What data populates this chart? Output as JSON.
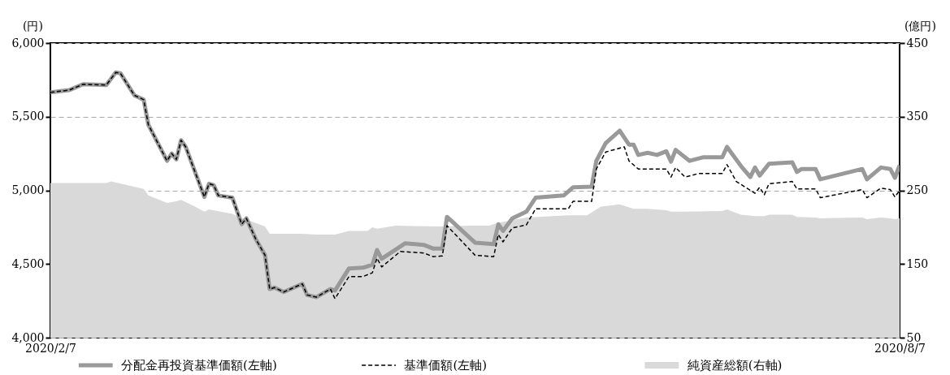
{
  "chart_data": {
    "type": "line",
    "ylabel": "(円)",
    "y2label": "(億円)",
    "grid": "y",
    "legend": "bottom",
    "xlim": [
      "2020-02-07",
      "2020-08-07"
    ],
    "xticks": [
      {
        "value": "2020-02-07",
        "label": "2020/2/7"
      },
      {
        "value": "2020-08-07",
        "label": "2020/8/7"
      }
    ],
    "ylim": [
      4000,
      6000
    ],
    "yticks": [
      {
        "value": 4000,
        "label": "4,000"
      },
      {
        "value": 4500,
        "label": "4,500"
      },
      {
        "value": 5000,
        "label": "5,000"
      },
      {
        "value": 5500,
        "label": "5,500"
      },
      {
        "value": 6000,
        "label": "6,000"
      }
    ],
    "y2lim": [
      50,
      450
    ],
    "y2ticks": [
      50,
      150,
      250,
      350,
      450
    ],
    "series": [
      {
        "name": "分配金再投資基準価額(左軸)",
        "type": "line",
        "line_style": "solid",
        "color": "#999999",
        "x": [
          "2020-02-07",
          "2020-02-11",
          "2020-02-14",
          "2020-02-19",
          "2020-02-21",
          "2020-02-22",
          "2020-02-25",
          "2020-02-27",
          "2020-02-28",
          "2020-03-03",
          "2020-03-04",
          "2020-03-05",
          "2020-03-06",
          "2020-03-07",
          "2020-03-11",
          "2020-03-12",
          "2020-03-13",
          "2020-03-14",
          "2020-03-17",
          "2020-03-19",
          "2020-03-20",
          "2020-03-22",
          "2020-03-24",
          "2020-03-25",
          "2020-03-26",
          "2020-03-28",
          "2020-04-01",
          "2020-04-02",
          "2020-04-04",
          "2020-04-07",
          "2020-04-08",
          "2020-04-11",
          "2020-04-14",
          "2020-04-16",
          "2020-04-17",
          "2020-04-18",
          "2020-04-23",
          "2020-04-27",
          "2020-04-29",
          "2020-05-01",
          "2020-05-02",
          "2020-05-08",
          "2020-05-12",
          "2020-05-13",
          "2020-05-14",
          "2020-05-16",
          "2020-05-19",
          "2020-05-21",
          "2020-05-27",
          "2020-05-29",
          "2020-06-02",
          "2020-06-03",
          "2020-06-05",
          "2020-06-08",
          "2020-06-10",
          "2020-06-11",
          "2020-06-12",
          "2020-06-14",
          "2020-06-16",
          "2020-06-18",
          "2020-06-19",
          "2020-06-20",
          "2020-06-23",
          "2020-06-26",
          "2020-06-30",
          "2020-07-01",
          "2020-07-04",
          "2020-07-06",
          "2020-07-07",
          "2020-07-08",
          "2020-07-10",
          "2020-07-15",
          "2020-07-16",
          "2020-07-17",
          "2020-07-20",
          "2020-07-21",
          "2020-07-30",
          "2020-07-31",
          "2020-08-03",
          "2020-08-05",
          "2020-08-06",
          "2020-08-07"
        ],
        "values": [
          5665,
          5680,
          5720,
          5715,
          5800,
          5795,
          5645,
          5615,
          5445,
          5200,
          5250,
          5210,
          5340,
          5295,
          4955,
          5045,
          5035,
          4965,
          4950,
          4770,
          4810,
          4670,
          4560,
          4330,
          4340,
          4310,
          4365,
          4290,
          4275,
          4330,
          4320,
          4470,
          4475,
          4495,
          4595,
          4535,
          4640,
          4630,
          4605,
          4605,
          4820,
          4645,
          4635,
          4770,
          4725,
          4810,
          4855,
          4950,
          4965,
          5020,
          5025,
          5200,
          5320,
          5405,
          5310,
          5310,
          5240,
          5255,
          5240,
          5265,
          5195,
          5275,
          5200,
          5225,
          5225,
          5295,
          5165,
          5090,
          5155,
          5100,
          5180,
          5190,
          5125,
          5145,
          5145,
          5075,
          5145,
          5075,
          5155,
          5145,
          5085,
          5170
        ]
      },
      {
        "name": "基準価額(左軸)",
        "type": "line",
        "line_style": "dashed",
        "color": "#000000",
        "x": [
          "2020-02-07",
          "2020-02-11",
          "2020-02-14",
          "2020-02-19",
          "2020-02-21",
          "2020-02-22",
          "2020-02-25",
          "2020-02-27",
          "2020-02-28",
          "2020-03-03",
          "2020-03-04",
          "2020-03-05",
          "2020-03-06",
          "2020-03-07",
          "2020-03-11",
          "2020-03-12",
          "2020-03-13",
          "2020-03-14",
          "2020-03-17",
          "2020-03-19",
          "2020-03-20",
          "2020-03-22",
          "2020-03-24",
          "2020-03-25",
          "2020-03-26",
          "2020-03-28",
          "2020-04-01",
          "2020-04-02",
          "2020-04-04",
          "2020-04-07",
          "2020-04-08",
          "2020-04-11",
          "2020-04-14",
          "2020-04-16",
          "2020-04-17",
          "2020-04-18",
          "2020-04-22",
          "2020-04-27",
          "2020-04-29",
          "2020-05-01",
          "2020-05-02",
          "2020-05-08",
          "2020-05-12",
          "2020-05-13",
          "2020-05-14",
          "2020-05-16",
          "2020-05-19",
          "2020-05-21",
          "2020-05-28",
          "2020-05-29",
          "2020-06-02",
          "2020-06-03",
          "2020-06-05",
          "2020-06-09",
          "2020-06-10",
          "2020-06-12",
          "2020-06-14",
          "2020-06-18",
          "2020-06-19",
          "2020-06-20",
          "2020-06-22",
          "2020-06-25",
          "2020-06-30",
          "2020-07-01",
          "2020-07-03",
          "2020-07-07",
          "2020-07-08",
          "2020-07-09",
          "2020-07-10",
          "2020-07-15",
          "2020-07-16",
          "2020-07-20",
          "2020-07-21",
          "2020-07-30",
          "2020-07-31",
          "2020-08-03",
          "2020-08-05",
          "2020-08-06",
          "2020-08-07"
        ],
        "values": [
          5665,
          5680,
          5720,
          5715,
          5800,
          5795,
          5645,
          5615,
          5445,
          5200,
          5250,
          5210,
          5340,
          5295,
          4955,
          5045,
          5035,
          4965,
          4950,
          4770,
          4810,
          4670,
          4560,
          4330,
          4340,
          4310,
          4365,
          4290,
          4275,
          4330,
          4265,
          4415,
          4415,
          4440,
          4540,
          4480,
          4585,
          4575,
          4550,
          4555,
          4760,
          4560,
          4550,
          4700,
          4650,
          4745,
          4765,
          4875,
          4875,
          4925,
          4925,
          5145,
          5260,
          5295,
          5200,
          5145,
          5145,
          5145,
          5090,
          5155,
          5090,
          5115,
          5115,
          5175,
          5060,
          4980,
          5020,
          4970,
          5045,
          5060,
          5010,
          5010,
          4950,
          5005,
          4950,
          5015,
          5005,
          4955,
          5000
        ]
      },
      {
        "name": "純資産総額(右軸)",
        "type": "area",
        "axis": "y2",
        "color": "#d9d9d9",
        "x": [
          "2020-02-07",
          "2020-02-19",
          "2020-02-20",
          "2020-02-27",
          "2020-02-28",
          "2020-03-03",
          "2020-03-05",
          "2020-03-06",
          "2020-03-09",
          "2020-03-11",
          "2020-03-12",
          "2020-03-17",
          "2020-03-18",
          "2020-03-24",
          "2020-03-25",
          "2020-04-01",
          "2020-04-04",
          "2020-04-08",
          "2020-04-11",
          "2020-04-15",
          "2020-04-16",
          "2020-04-17",
          "2020-04-21",
          "2020-05-01",
          "2020-05-07",
          "2020-05-11",
          "2020-05-13",
          "2020-05-19",
          "2020-05-28",
          "2020-06-01",
          "2020-06-04",
          "2020-06-08",
          "2020-06-11",
          "2020-06-14",
          "2020-06-18",
          "2020-06-19",
          "2020-06-22",
          "2020-06-30",
          "2020-07-01",
          "2020-07-04",
          "2020-07-07",
          "2020-07-09",
          "2020-07-10",
          "2020-07-15",
          "2020-07-16",
          "2020-07-20",
          "2020-07-21",
          "2020-07-30",
          "2020-07-31",
          "2020-08-03",
          "2020-08-05",
          "2020-08-06",
          "2020-08-07"
        ],
        "values": [
          260,
          260,
          262,
          252,
          243,
          233,
          235,
          237,
          228,
          221,
          224,
          218,
          215,
          201,
          191,
          191,
          190,
          190,
          195,
          195,
          200,
          198,
          202,
          201,
          202,
          202,
          206,
          213,
          216,
          216,
          228,
          231,
          225,
          225,
          223,
          221,
          221,
          222,
          224,
          217,
          215,
          215,
          217,
          217,
          214,
          213,
          212,
          213,
          211,
          213,
          212,
          211,
          212
        ]
      }
    ]
  }
}
